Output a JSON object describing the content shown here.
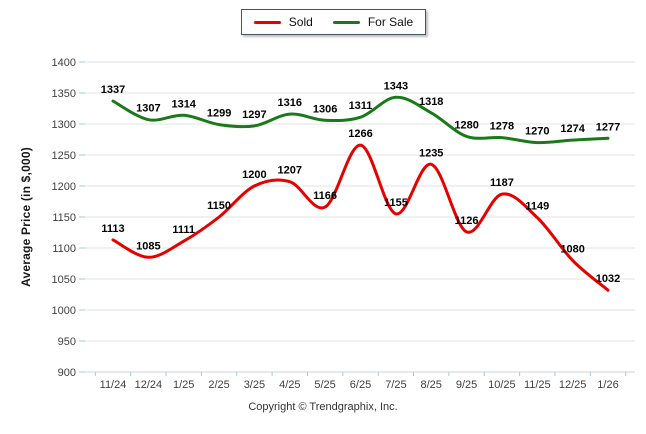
{
  "chart_data": {
    "type": "line",
    "title": "",
    "x": [
      "11/24",
      "12/24",
      "1/25",
      "2/25",
      "3/25",
      "4/25",
      "5/25",
      "6/25",
      "7/25",
      "8/25",
      "9/25",
      "10/25",
      "11/25",
      "12/25",
      "1/26"
    ],
    "series": [
      {
        "name": "Sold",
        "color": "#e60000",
        "values": [
          1113,
          1085,
          1111,
          1150,
          1200,
          1207,
          1166,
          1266,
          1155,
          1235,
          1126,
          1187,
          1149,
          1080,
          1032
        ]
      },
      {
        "name": "For Sale",
        "color": "#1a7a1a",
        "values": [
          1337,
          1307,
          1314,
          1299,
          1297,
          1316,
          1306,
          1311,
          1343,
          1318,
          1280,
          1278,
          1270,
          1274,
          1277
        ]
      }
    ],
    "ylabel": "Average Price (in $,000)",
    "xlabel": "",
    "ylim": [
      900,
      1400
    ],
    "yticks": [
      900,
      950,
      1000,
      1050,
      1100,
      1150,
      1200,
      1250,
      1300,
      1350,
      1400
    ],
    "grid": true,
    "smooth": true,
    "data_labels": true,
    "legend_position": "top"
  },
  "palette": {
    "grid": "#e3e3e3",
    "axis_line": "#ccd4db",
    "axis_tick": "#a9c7e2",
    "data_label": "#000000"
  },
  "footer": {
    "copyright": "Copyright © Trendgraphix, Inc."
  }
}
